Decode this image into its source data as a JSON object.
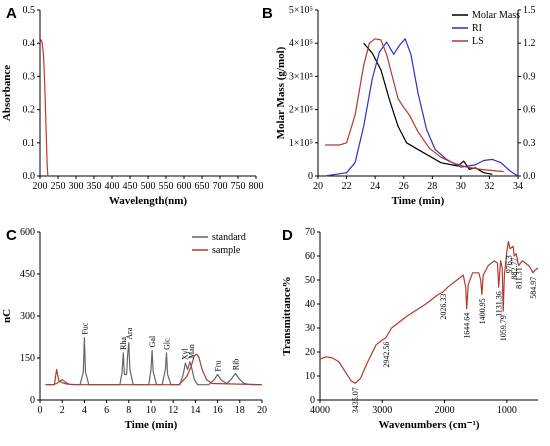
{
  "chart_data": [
    {
      "panel": "A",
      "type": "line",
      "xlabel": "Wavelength(nm)",
      "ylabel": "Absorbance",
      "xlim": [
        200,
        800
      ],
      "ylim": [
        0,
        0.5
      ],
      "xticks": [
        "200",
        "250",
        "300",
        "350",
        "400",
        "450",
        "500",
        "550",
        "600",
        "650",
        "700",
        "750",
        "800"
      ],
      "yticks": [
        "0.0",
        "0.1",
        "0.2",
        "0.3",
        "0.4",
        "0.5"
      ],
      "series": [
        {
          "color": "#c0392b",
          "x": [
            200,
            203,
            206,
            210,
            213,
            216,
            219,
            220,
            222,
            224
          ],
          "y": [
            0.4,
            0.41,
            0.4,
            0.36,
            0.28,
            0.17,
            0.07,
            0.03,
            0.0,
            0.0
          ]
        }
      ]
    },
    {
      "panel": "B",
      "type": "line",
      "xlabel": "Time (min)",
      "ylabel": "Molar Mass (g/mol)",
      "xlim": [
        20,
        34
      ],
      "ylim": [
        0,
        500000
      ],
      "y2lim": [
        0,
        1.5
      ],
      "xticks": [
        "20",
        "22",
        "24",
        "26",
        "28",
        "30",
        "32",
        "34"
      ],
      "yticks": [
        "0",
        "1×10⁵",
        "2×10⁵",
        "3×10⁵",
        "4×10⁵",
        "5×10⁵"
      ],
      "y2ticks": [
        "0.0",
        "0.3",
        "0.6",
        "0.9",
        "1.2",
        "1.5"
      ],
      "legend": [
        "Molar Mass",
        "RI",
        "LS"
      ],
      "legend_position": "top-right",
      "series": [
        {
          "name": "Molar Mass",
          "color": "#000000",
          "axis": "left",
          "x": [
            23.2,
            23.8,
            24.4,
            25.0,
            25.6,
            26.2,
            26.8,
            27.4,
            28.0,
            28.6,
            29.2,
            29.8,
            30.2,
            30.6,
            31.0,
            31.6,
            32.2
          ],
          "y": [
            400000,
            370000,
            320000,
            230000,
            150000,
            100000,
            85000,
            70000,
            55000,
            40000,
            35000,
            30000,
            45000,
            20000,
            25000,
            10000,
            5000
          ]
        },
        {
          "name": "RI",
          "color": "#2e2ecc",
          "axis": "right",
          "x": [
            20.5,
            21.5,
            22.0,
            22.6,
            23.2,
            23.8,
            24.3,
            24.8,
            25.3,
            25.7,
            26.1,
            26.5,
            27.0,
            27.6,
            28.2,
            29.0,
            30.0,
            31.0,
            31.6,
            32.2,
            32.8,
            33.5,
            34.0
          ],
          "y": [
            0.0,
            0.02,
            0.03,
            0.12,
            0.45,
            0.88,
            1.12,
            1.21,
            1.1,
            1.18,
            1.24,
            1.1,
            0.75,
            0.42,
            0.24,
            0.15,
            0.08,
            0.1,
            0.14,
            0.15,
            0.12,
            0.04,
            0.0
          ]
        },
        {
          "name": "LS",
          "color": "#b03a2e",
          "axis": "right",
          "x": [
            20.5,
            21.5,
            22.0,
            22.6,
            23.2,
            23.6,
            24.0,
            24.4,
            24.8,
            25.2,
            25.6,
            26.0,
            26.4,
            27.0,
            27.8,
            28.6,
            29.4,
            30.4,
            31.4,
            32.2,
            33.0
          ],
          "y": [
            0.28,
            0.28,
            0.3,
            0.55,
            1.0,
            1.2,
            1.24,
            1.23,
            1.1,
            0.9,
            0.7,
            0.62,
            0.55,
            0.4,
            0.25,
            0.17,
            0.12,
            0.08,
            0.06,
            0.05,
            0.04
          ]
        }
      ]
    },
    {
      "panel": "C",
      "type": "line",
      "xlabel": "Time (min)",
      "ylabel": "nC",
      "xlim": [
        0,
        20
      ],
      "ylim": [
        -60,
        600
      ],
      "xticks": [
        "0",
        "2",
        "4",
        "6",
        "8",
        "10",
        "12",
        "14",
        "16",
        "18",
        "20"
      ],
      "yticks": [
        "0",
        "150",
        "300",
        "450",
        "600"
      ],
      "legend": [
        "standard",
        "sample"
      ],
      "legend_position": "top-right",
      "annotations": [
        {
          "text": "Fuc",
          "x": 4.0,
          "y": 185
        },
        {
          "text": "Rha",
          "x": 7.5,
          "y": 125
        },
        {
          "text": "Ara",
          "x": 8.0,
          "y": 165
        },
        {
          "text": "Gal",
          "x": 10.1,
          "y": 135
        },
        {
          "text": "Glc",
          "x": 11.4,
          "y": 125
        },
        {
          "text": "Xyl",
          "x": 13.0,
          "y": 85
        },
        {
          "text": "Man",
          "x": 13.6,
          "y": 90
        },
        {
          "text": "Fru",
          "x": 16.0,
          "y": 40
        },
        {
          "text": "Rib",
          "x": 17.6,
          "y": 45
        }
      ],
      "series": [
        {
          "name": "standard",
          "color": "#666666",
          "x": [
            0.5,
            1.2,
            1.5,
            2.0,
            2.3,
            2.6,
            3.6,
            3.9,
            4.0,
            4.1,
            4.4,
            7.2,
            7.4,
            7.5,
            7.6,
            7.8,
            7.9,
            8.0,
            8.1,
            8.4,
            9.8,
            10.0,
            10.1,
            10.2,
            10.5,
            11.0,
            11.3,
            11.4,
            11.5,
            11.8,
            12.6,
            12.9,
            13.1,
            13.3,
            13.5,
            13.7,
            13.9,
            14.2,
            15.2,
            15.7,
            16.0,
            16.3,
            16.8,
            17.2,
            17.6,
            18.0,
            18.4,
            19.0,
            20.0
          ],
          "y": [
            0,
            0,
            5,
            20,
            10,
            2,
            0,
            50,
            185,
            50,
            0,
            0,
            50,
            125,
            40,
            40,
            120,
            165,
            60,
            0,
            0,
            60,
            135,
            50,
            0,
            0,
            60,
            125,
            40,
            0,
            0,
            40,
            85,
            60,
            90,
            60,
            20,
            0,
            0,
            20,
            40,
            20,
            5,
            20,
            45,
            20,
            5,
            0,
            0
          ]
        },
        {
          "name": "sample",
          "color": "#b03a2e",
          "x": [
            0.5,
            1.3,
            1.5,
            1.7,
            2.0,
            2.4,
            3.0,
            12.5,
            13.2,
            13.6,
            13.9,
            14.1,
            14.3,
            14.6,
            15.0,
            15.5,
            20.0
          ],
          "y": [
            0,
            0,
            60,
            15,
            8,
            3,
            0,
            0,
            30,
            70,
            115,
            120,
            110,
            60,
            20,
            5,
            0
          ]
        }
      ]
    },
    {
      "panel": "D",
      "type": "line",
      "xlabel": "Wavenumbers (cm⁻¹)",
      "ylabel": "Transmittance%",
      "xlim": [
        4000,
        500
      ],
      "ylim": [
        0,
        70
      ],
      "xticks": [
        "4000",
        "3000",
        "2000",
        "1000"
      ],
      "yticks": [
        "0",
        "10",
        "20",
        "30",
        "40",
        "50",
        "60",
        "70"
      ],
      "annotations": [
        {
          "text": "3435.07",
          "x": 3435,
          "y": 7
        },
        {
          "text": "2942.56",
          "x": 2942,
          "y": 26
        },
        {
          "text": "2026.33",
          "x": 2026,
          "y": 46
        },
        {
          "text": "1644.64",
          "x": 1644,
          "y": 38
        },
        {
          "text": "1400.95",
          "x": 1400,
          "y": 44
        },
        {
          "text": "1131.36",
          "x": 1131,
          "y": 47
        },
        {
          "text": "1059.79",
          "x": 1059,
          "y": 37
        },
        {
          "text": "976.3",
          "x": 976,
          "y": 62
        },
        {
          "text": "882.77",
          "x": 882,
          "y": 61
        },
        {
          "text": "811.31",
          "x": 811,
          "y": 57
        },
        {
          "text": "584.97",
          "x": 584,
          "y": 53
        }
      ],
      "series": [
        {
          "color": "#b03a2e",
          "x": [
            4000,
            3900,
            3800,
            3700,
            3600,
            3500,
            3435,
            3350,
            3250,
            3100,
            3000,
            2942,
            2850,
            2600,
            2300,
            2100,
            2026,
            1950,
            1800,
            1700,
            1660,
            1644,
            1620,
            1550,
            1450,
            1420,
            1400,
            1380,
            1300,
            1200,
            1150,
            1131,
            1100,
            1075,
            1059,
            1040,
            1000,
            976,
            950,
            900,
            882,
            850,
            811,
            750,
            650,
            600,
            584,
            550,
            500
          ],
          "y": [
            17,
            18,
            17.5,
            16,
            12,
            8,
            7,
            9,
            15,
            23,
            25,
            26,
            30,
            35,
            40,
            44,
            45,
            47,
            50,
            52,
            47,
            38,
            48,
            53,
            53,
            50,
            44,
            52,
            56,
            58,
            57,
            47,
            58,
            55,
            37,
            52,
            62,
            66,
            63,
            64,
            60,
            61,
            56,
            58,
            56,
            54,
            53,
            54,
            55
          ]
        }
      ]
    }
  ]
}
